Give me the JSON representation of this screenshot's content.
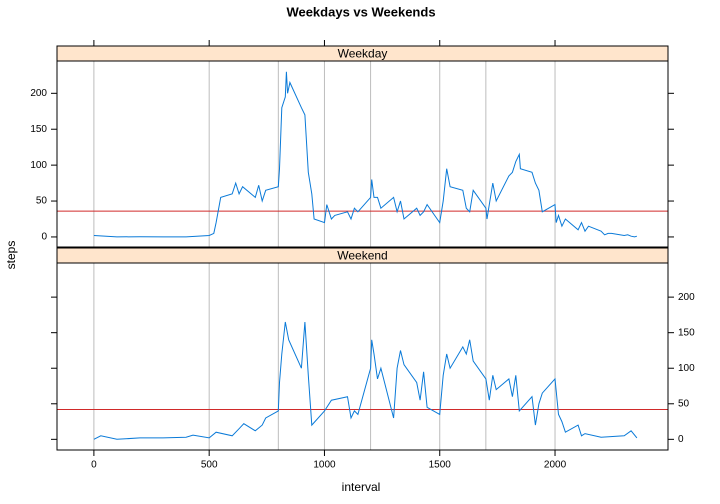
{
  "chart_data": {
    "type": "line",
    "title": "Weekdays vs Weekends",
    "xlabel": "interval",
    "ylabel": "steps",
    "xlim": [
      -160,
      2490
    ],
    "xticks": [
      0,
      500,
      1000,
      1500,
      2000
    ],
    "vlines": [
      0,
      500,
      800,
      1000,
      1200,
      1500,
      1700,
      2000
    ],
    "color": "#0a7ad8",
    "hline_color": "#d02a2a",
    "vline_color": "#bdbdbd",
    "strip_color": "#ffe5cc",
    "panels": [
      {
        "strip": "Weekday",
        "ylim": [
          -14,
          245
        ],
        "yticks": [
          0,
          50,
          100,
          150,
          200
        ],
        "tick_labels": "left",
        "hline": 36,
        "x": [
          0,
          100,
          200,
          300,
          400,
          500,
          520,
          530,
          550,
          600,
          615,
          630,
          645,
          700,
          715,
          730,
          745,
          800,
          805,
          815,
          830,
          835,
          840,
          850,
          900,
          915,
          930,
          945,
          955,
          1000,
          1010,
          1030,
          1045,
          1100,
          1115,
          1130,
          1145,
          1200,
          1205,
          1215,
          1230,
          1245,
          1300,
          1315,
          1330,
          1345,
          1400,
          1415,
          1430,
          1445,
          1500,
          1515,
          1530,
          1545,
          1600,
          1615,
          1630,
          1645,
          1700,
          1705,
          1715,
          1730,
          1745,
          1800,
          1815,
          1830,
          1845,
          1850,
          1900,
          1915,
          1930,
          1945,
          2000,
          2005,
          2015,
          2030,
          2045,
          2100,
          2115,
          2130,
          2145,
          2200,
          2215,
          2230,
          2245,
          2300,
          2315,
          2330,
          2345,
          2355
        ],
        "values": [
          2,
          0,
          0.3,
          0,
          0,
          2,
          5,
          20,
          55,
          60,
          75,
          60,
          70,
          55,
          72,
          50,
          65,
          70,
          95,
          180,
          195,
          230,
          200,
          215,
          180,
          170,
          90,
          60,
          25,
          20,
          45,
          25,
          30,
          35,
          25,
          40,
          35,
          55,
          80,
          55,
          55,
          40,
          55,
          35,
          50,
          25,
          40,
          30,
          35,
          45,
          20,
          50,
          95,
          70,
          65,
          40,
          35,
          65,
          40,
          25,
          45,
          75,
          50,
          85,
          90,
          105,
          115,
          95,
          90,
          75,
          65,
          35,
          45,
          20,
          30,
          15,
          25,
          10,
          20,
          8,
          15,
          8,
          3,
          5,
          5,
          2,
          3,
          1,
          0,
          1
        ]
      },
      {
        "strip": "Weekend",
        "ylim": [
          -15,
          248
        ],
        "yticks": [
          0,
          50,
          100,
          150,
          200
        ],
        "tick_labels": "right",
        "hline": 42,
        "x": [
          0,
          30,
          100,
          200,
          300,
          400,
          430,
          500,
          530,
          600,
          630,
          650,
          700,
          730,
          745,
          800,
          805,
          815,
          830,
          845,
          900,
          915,
          930,
          945,
          1000,
          1030,
          1100,
          1115,
          1130,
          1145,
          1200,
          1205,
          1215,
          1230,
          1245,
          1300,
          1315,
          1330,
          1345,
          1400,
          1415,
          1430,
          1445,
          1500,
          1515,
          1530,
          1545,
          1600,
          1615,
          1630,
          1645,
          1700,
          1715,
          1730,
          1745,
          1800,
          1815,
          1830,
          1845,
          1900,
          1915,
          1930,
          1945,
          2000,
          2015,
          2030,
          2045,
          2100,
          2115,
          2130,
          2200,
          2300,
          2330,
          2355
        ],
        "values": [
          0,
          5,
          0,
          2,
          2,
          3,
          6,
          2,
          10,
          5,
          15,
          22,
          12,
          20,
          30,
          40,
          80,
          120,
          165,
          140,
          100,
          165,
          90,
          20,
          40,
          55,
          60,
          30,
          40,
          35,
          100,
          140,
          120,
          85,
          100,
          30,
          100,
          125,
          105,
          80,
          55,
          95,
          45,
          35,
          90,
          120,
          100,
          130,
          120,
          140,
          110,
          85,
          55,
          90,
          70,
          85,
          60,
          90,
          40,
          60,
          20,
          50,
          65,
          85,
          35,
          25,
          10,
          20,
          5,
          8,
          3,
          5,
          12,
          2
        ]
      }
    ]
  }
}
